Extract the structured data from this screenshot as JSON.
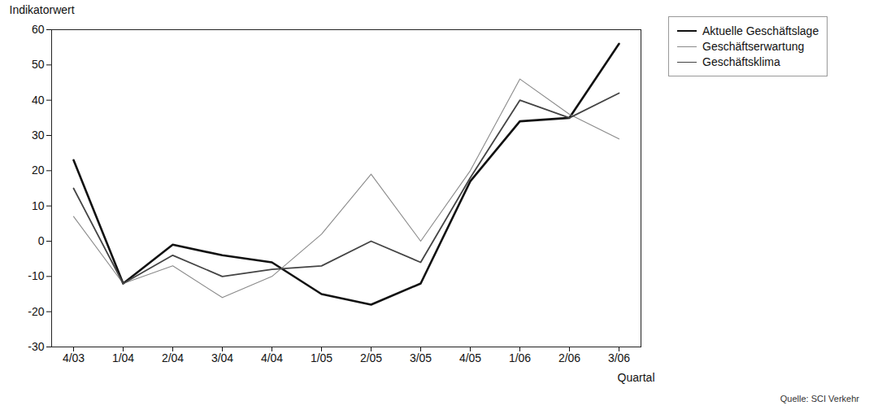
{
  "chart_data": {
    "type": "line",
    "x_label": "Quartal",
    "y_label": "Indikatorwert",
    "source": "Quelle: SCI Verkehr",
    "categories": [
      "4/03",
      "1/04",
      "2/04",
      "3/04",
      "4/04",
      "1/05",
      "2/05",
      "3/05",
      "4/05",
      "1/06",
      "2/06",
      "3/06"
    ],
    "series": [
      {
        "name": "Aktuelle Geschäftslage",
        "color": "#111111",
        "values": [
          23,
          -12,
          -1,
          -4,
          -6,
          -15,
          -18,
          -12,
          17,
          34,
          35,
          56
        ]
      },
      {
        "name": "Geschäftserwartung",
        "color": "#8a8a8a",
        "values": [
          7,
          -12,
          -7,
          -16,
          -10,
          2,
          19,
          0,
          20,
          46,
          36,
          29
        ]
      },
      {
        "name": "Geschäftsklima",
        "color": "#444444",
        "values": [
          15,
          -12,
          -4,
          -10,
          -8,
          -7,
          0,
          -6,
          18,
          40,
          35,
          42
        ]
      }
    ],
    "ylim": [
      -30,
      60
    ],
    "yticks": [
      -30,
      -20,
      -10,
      0,
      10,
      20,
      30,
      40,
      50,
      60
    ],
    "grid": false,
    "legend": "top-right"
  }
}
